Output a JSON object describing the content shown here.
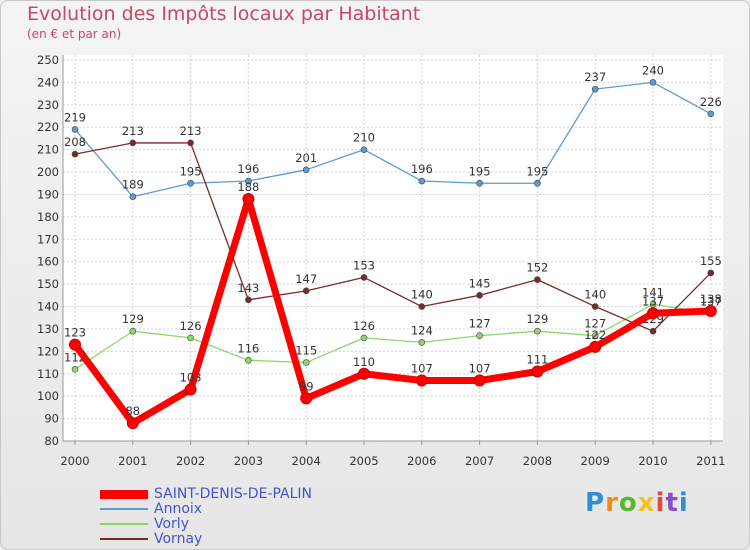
{
  "chart_data": {
    "type": "line",
    "title": "Evolution des Impôts locaux par Habitant",
    "subtitle": "(en € et par an)",
    "x": [
      "2000",
      "2001",
      "2002",
      "2003",
      "2004",
      "2005",
      "2006",
      "2007",
      "2008",
      "2009",
      "2010",
      "2011"
    ],
    "ylim": [
      80,
      250
    ],
    "yticks": [
      80,
      90,
      100,
      110,
      120,
      130,
      140,
      150,
      160,
      170,
      180,
      190,
      200,
      210,
      220,
      230,
      240,
      250
    ],
    "grid": true,
    "legend": "bottom-left",
    "series": [
      {
        "name": "Annoix",
        "color": "#5b9bd5",
        "values": [
          219,
          189,
          195,
          196,
          201,
          210,
          196,
          195,
          195,
          237,
          240,
          226
        ]
      },
      {
        "name": "Vorly",
        "color": "#8fd66a",
        "values": [
          112,
          129,
          126,
          116,
          115,
          126,
          124,
          127,
          129,
          127,
          141,
          137
        ]
      },
      {
        "name": "Vornay",
        "color": "#7a2a2a",
        "values": [
          208,
          213,
          213,
          143,
          147,
          153,
          140,
          145,
          152,
          140,
          129,
          155
        ]
      },
      {
        "name": "SAINT-DENIS-DE-PALIN",
        "color": "#ff0000",
        "values": [
          123,
          88,
          103,
          188,
          99,
          110,
          107,
          107,
          111,
          122,
          137,
          138
        ]
      }
    ],
    "legend_order": [
      "SAINT-DENIS-DE-PALIN",
      "Annoix",
      "Vorly",
      "Vornay"
    ]
  },
  "logo": {
    "text": "Proxiti",
    "colors": [
      "#2f8fd6",
      "#f28a1c",
      "#5cb531",
      "#f2c21c",
      "#e24a3b",
      "#8a4fc9",
      "#2f8fd6"
    ]
  }
}
